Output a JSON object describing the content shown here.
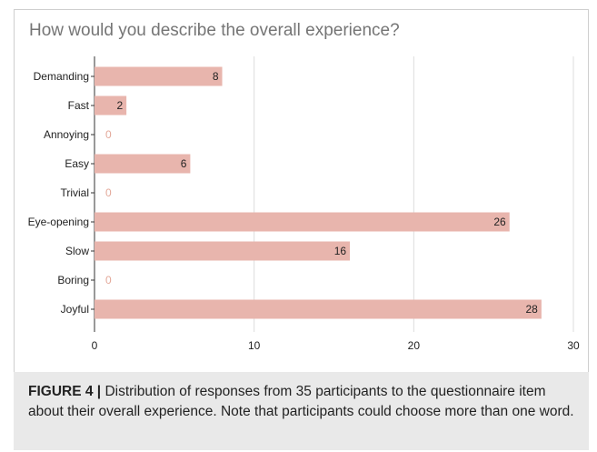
{
  "chart_data": {
    "type": "bar",
    "orientation": "horizontal",
    "title": "How would you describe the overall experience?",
    "categories": [
      "Demanding",
      "Fast",
      "Annoying",
      "Easy",
      "Trivial",
      "Eye-opening",
      "Slow",
      "Boring",
      "Joyful"
    ],
    "values": [
      8,
      2,
      0,
      6,
      0,
      26,
      16,
      0,
      28
    ],
    "xlim": [
      0,
      30
    ],
    "xticks": [
      0,
      10,
      20,
      30
    ],
    "xlabel": "",
    "ylabel": "",
    "grid": "vertical",
    "legend": "none",
    "bar_color": "#e8b5ad",
    "zero_label_color": "#e3a899",
    "data_labels": true
  },
  "caption": {
    "label": "FIGURE 4",
    "separator": "|",
    "text": "Distribution of responses from 35 participants to the questionnaire item about their overall experience. Note that participants could choose more than one word."
  }
}
